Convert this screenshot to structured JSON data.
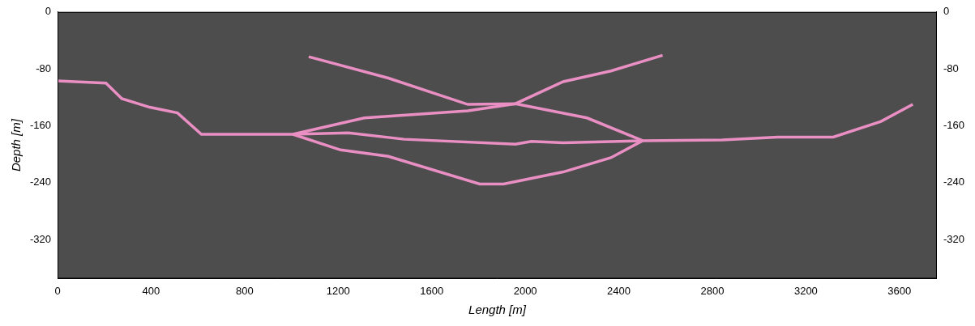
{
  "chart_data": {
    "type": "line",
    "x_label": "Length [m]",
    "y_label": "Depth [m]",
    "xlim": [
      0,
      3760
    ],
    "xticks": [
      0,
      400,
      800,
      1200,
      1600,
      2000,
      2400,
      2800,
      3200,
      3600
    ],
    "ylim": [
      -375,
      0
    ],
    "yticks": [
      0,
      -80,
      -160,
      -240,
      -320
    ],
    "y2lim": [
      -375,
      0
    ],
    "y2ticks": [
      0,
      -80,
      -160,
      -240,
      -320
    ],
    "grid": false,
    "series": [
      {
        "color": "#e98fc3",
        "line_style": "solid",
        "x": [
          0,
          207,
          275,
          394,
          513,
          615,
          1006
        ],
        "values": [
          -97,
          -100,
          -122,
          -134,
          -142,
          -172,
          -172
        ]
      },
      {
        "color": "#e98fc3",
        "line_style": "solid",
        "x": [
          2502,
          2842,
          3080,
          3317,
          3521,
          3657
        ],
        "values": [
          -181,
          -180,
          -176,
          -176,
          -154,
          -130
        ]
      },
      {
        "color": "#e98fc3",
        "line_style": "solid",
        "x": [
          1074,
          1414,
          1754,
          1958,
          2264,
          2502
        ],
        "values": [
          -63,
          -93,
          -130,
          -129,
          -149,
          -181
        ]
      },
      {
        "color": "#e98fc3",
        "line_style": "solid",
        "x": [
          1006,
          1312,
          1754,
          1958,
          2162,
          2366,
          2587
        ],
        "values": [
          -172,
          -149,
          -139,
          -129,
          -98,
          -83,
          -61
        ]
      },
      {
        "color": "#e98fc3",
        "line_style": "solid",
        "x": [
          1006,
          1244,
          1482,
          1958,
          2026,
          2162,
          2502
        ],
        "values": [
          -172,
          -170,
          -179,
          -186,
          -182,
          -184,
          -181
        ]
      },
      {
        "color": "#e98fc3",
        "line_style": "solid",
        "x": [
          1006,
          1210,
          1414,
          1805,
          1907,
          2162,
          2366,
          2502
        ],
        "values": [
          -172,
          -194,
          -203,
          -242,
          -242,
          -225,
          -205,
          -181
        ]
      }
    ]
  }
}
